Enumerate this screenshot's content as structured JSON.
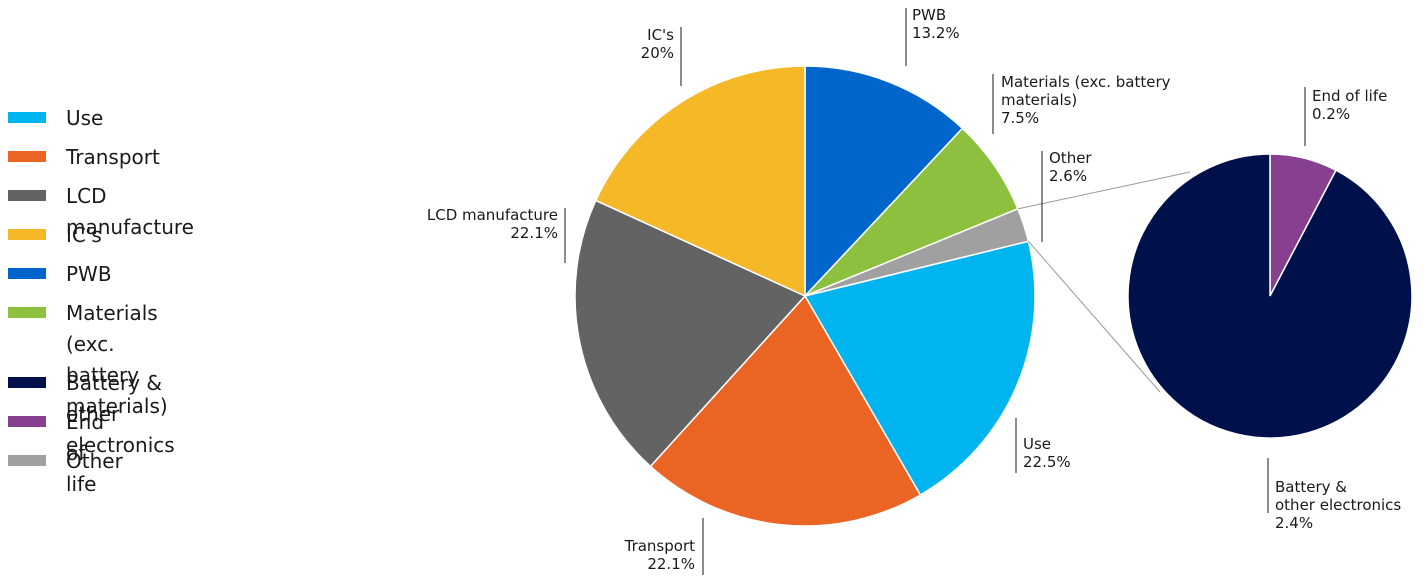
{
  "chart_data": [
    {
      "type": "pie",
      "slices": [
        {
          "key": "pwb",
          "label": "PWB",
          "value": 13.2,
          "value_text": "13.2%",
          "color": "#0066CC"
        },
        {
          "key": "materials",
          "label": "Materials (exc. battery\nmaterials)",
          "value": 7.5,
          "value_text": "7.5%",
          "color": "#8DC03F"
        },
        {
          "key": "other",
          "label": "Other",
          "value": 2.6,
          "value_text": "2.6%",
          "color": "#A0A0A0"
        },
        {
          "key": "use",
          "label": "Use",
          "value": 22.5,
          "value_text": "22.5%",
          "color": "#00B5EF"
        },
        {
          "key": "transport",
          "label": "Transport",
          "value": 22.1,
          "value_text": "22.1%",
          "color": "#EA6424"
        },
        {
          "key": "lcd",
          "label": "LCD manufacture",
          "value": 22.1,
          "value_text": "22.1%",
          "color": "#636363"
        },
        {
          "key": "ics",
          "label": "IC's",
          "value": 20,
          "value_text": "20%",
          "color": "#F5B826"
        }
      ]
    },
    {
      "type": "pie",
      "breakdown_of": "Other",
      "slices": [
        {
          "key": "eol",
          "label": "End of life",
          "value": 0.2,
          "value_text": "0.2%",
          "color": "#87408F"
        },
        {
          "key": "battery",
          "label": "Battery &\nother electronics",
          "value": 2.4,
          "value_text": "2.4%",
          "color": "#00104A"
        }
      ]
    }
  ],
  "legend": [
    {
      "label": "Use",
      "color": "#00B5EF"
    },
    {
      "label": "Transport",
      "color": "#EA6424"
    },
    {
      "label": "LCD manufacture",
      "color": "#636363"
    },
    {
      "label": "IC's",
      "color": "#F5B826"
    },
    {
      "label": "PWB",
      "color": "#0066CC"
    },
    {
      "label": "Materials\n(exc. battery materials)",
      "color": "#8DC03F"
    },
    {
      "label": "Battery & other electronics",
      "color": "#00104A"
    },
    {
      "label": "End of life",
      "color": "#87408F"
    },
    {
      "label": "Other",
      "color": "#A0A0A0"
    }
  ]
}
